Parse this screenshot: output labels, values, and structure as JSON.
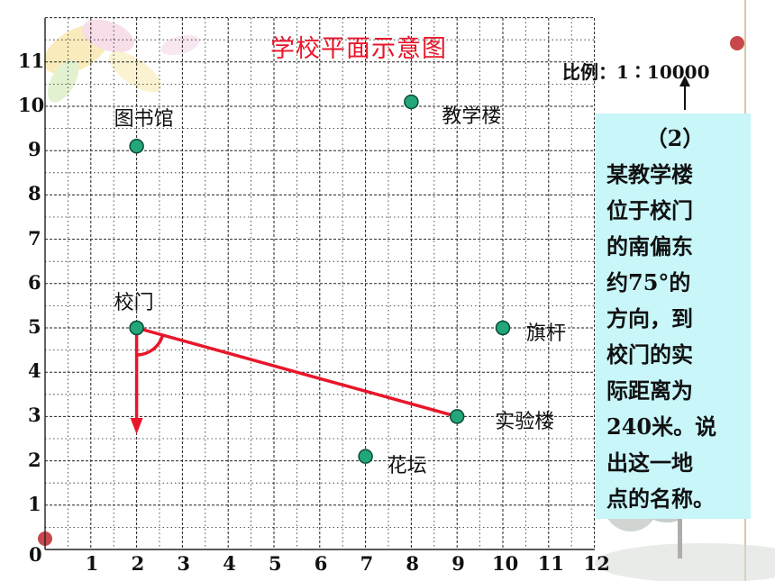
{
  "title": "学校平面示意图",
  "scale": "比例：1∶10000",
  "x_ticks": [
    "0",
    "1",
    "2",
    "3",
    "4",
    "5",
    "6",
    "7",
    "8",
    "9",
    "10",
    "11",
    "12"
  ],
  "y_ticks": [
    "1",
    "2",
    "3",
    "4",
    "5",
    "6",
    "7",
    "8",
    "9",
    "10",
    "11"
  ],
  "places": [
    {
      "name": "图书馆",
      "x": 2,
      "y": 9.1
    },
    {
      "name": "教学楼",
      "x": 8,
      "y": 10.1
    },
    {
      "name": "校门",
      "x": 2,
      "y": 5
    },
    {
      "name": "旗杆",
      "x": 10,
      "y": 5
    },
    {
      "name": "实验楼",
      "x": 9,
      "y": 3
    },
    {
      "name": "花坛",
      "x": 7,
      "y": 2.1
    }
  ],
  "question": {
    "number": "（2）",
    "lines": [
      "某教学楼",
      "位于校门",
      "的南偏东",
      "约75°的",
      "方向，到",
      "校门的实",
      "际距离为",
      "240米。说",
      "出这一地",
      "点的名称。"
    ]
  },
  "colors": {
    "grid": "#222222",
    "marker_fill": "#22a67a",
    "marker_stroke": "#0c4a3a",
    "accent": "#e8162a",
    "question_bg": "#c8f6f9"
  },
  "icons": [
    "blossom-decoration",
    "tree-decoration",
    "arrow-up-icon"
  ]
}
